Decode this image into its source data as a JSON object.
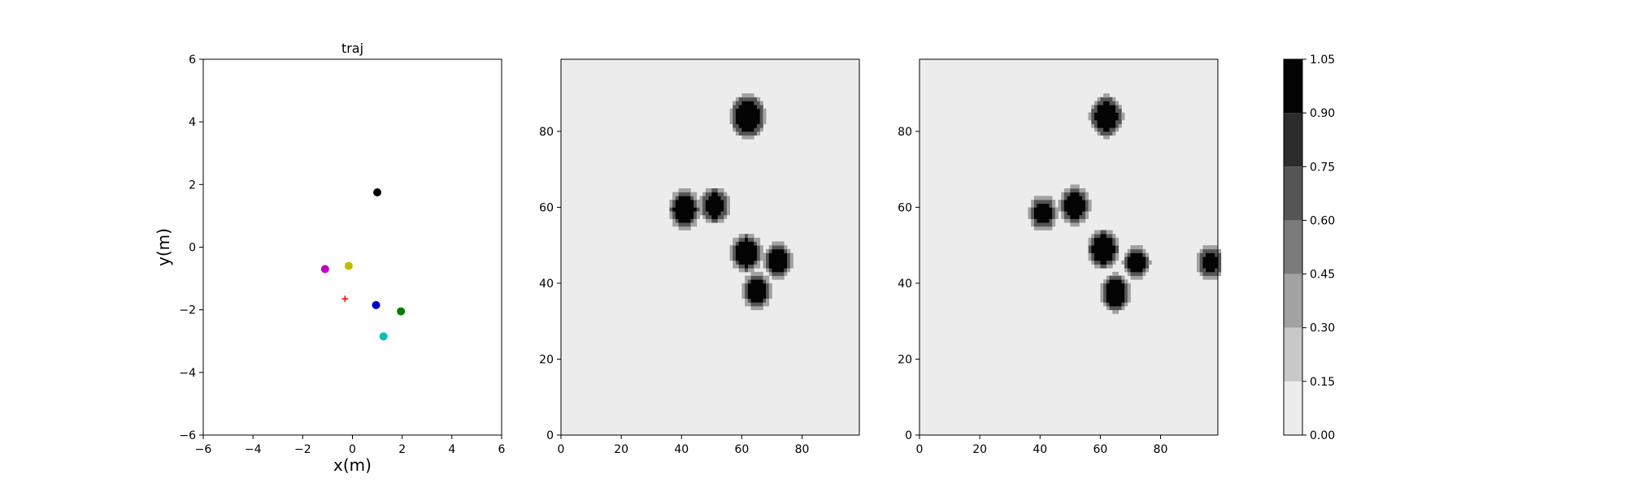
{
  "chart_data": [
    {
      "type": "scatter",
      "title": "traj",
      "xlabel": "x(m)",
      "ylabel": "y(m)",
      "xlim": [
        -6,
        6
      ],
      "ylim": [
        -6,
        6
      ],
      "xticks": [
        -6,
        -4,
        -2,
        0,
        2,
        4,
        6
      ],
      "yticks": [
        -6,
        -4,
        -2,
        0,
        2,
        4,
        6
      ],
      "grid": false,
      "points": [
        {
          "x": 1.0,
          "y": 1.75,
          "color": "#000000",
          "marker": "circle"
        },
        {
          "x": -1.1,
          "y": -0.7,
          "color": "#c000c0",
          "marker": "circle"
        },
        {
          "x": -0.15,
          "y": -0.6,
          "color": "#bfbf00",
          "marker": "circle"
        },
        {
          "x": 0.95,
          "y": -1.85,
          "color": "#0000cc",
          "marker": "circle"
        },
        {
          "x": 1.95,
          "y": -2.05,
          "color": "#007f00",
          "marker": "circle"
        },
        {
          "x": 1.25,
          "y": -2.85,
          "color": "#00bfbf",
          "marker": "circle"
        },
        {
          "x": -0.3,
          "y": -1.65,
          "color": "#ff0000",
          "marker": "plus"
        }
      ]
    },
    {
      "type": "heatmap",
      "title": "",
      "xlim": [
        0,
        99
      ],
      "ylim": [
        0,
        99
      ],
      "xticks": [
        0,
        20,
        40,
        60,
        80
      ],
      "yticks": [
        0,
        20,
        40,
        60,
        80
      ],
      "background_value": 0.05,
      "blob_value": 1.0,
      "blobs": [
        {
          "x": 62,
          "y": 84,
          "r": 4.2
        },
        {
          "x": 41,
          "y": 59.5,
          "r": 3.6
        },
        {
          "x": 51,
          "y": 60.5,
          "r": 3.2
        },
        {
          "x": 61.5,
          "y": 48,
          "r": 3.6
        },
        {
          "x": 72,
          "y": 46,
          "r": 3.0
        },
        {
          "x": 65,
          "y": 38,
          "r": 3.2
        }
      ]
    },
    {
      "type": "heatmap",
      "title": "",
      "xlim": [
        0,
        99
      ],
      "ylim": [
        0,
        99
      ],
      "xticks": [
        0,
        20,
        40,
        60,
        80
      ],
      "yticks": [
        0,
        20,
        40,
        60,
        80
      ],
      "background_value": 0.05,
      "blob_value": 1.0,
      "blobs": [
        {
          "x": 62,
          "y": 84,
          "r": 3.8
        },
        {
          "x": 41,
          "y": 58.5,
          "r": 3.0
        },
        {
          "x": 51.5,
          "y": 60.5,
          "r": 3.4
        },
        {
          "x": 61,
          "y": 49,
          "r": 3.6
        },
        {
          "x": 72,
          "y": 45.5,
          "r": 2.8
        },
        {
          "x": 65,
          "y": 37.5,
          "r": 3.4
        },
        {
          "x": 96.5,
          "y": 45.5,
          "r": 2.8
        }
      ]
    }
  ],
  "colorbar": {
    "levels": [
      0.0,
      0.15,
      0.3,
      0.45,
      0.6,
      0.75,
      0.9,
      1.05
    ],
    "tick_labels": [
      "0.00",
      "0.15",
      "0.30",
      "0.45",
      "0.60",
      "0.75",
      "0.90",
      "1.05"
    ],
    "colors": [
      "#ececec",
      "#c8c8c8",
      "#a2a2a2",
      "#7b7b7b",
      "#555555",
      "#2c2c2c",
      "#040404"
    ]
  }
}
